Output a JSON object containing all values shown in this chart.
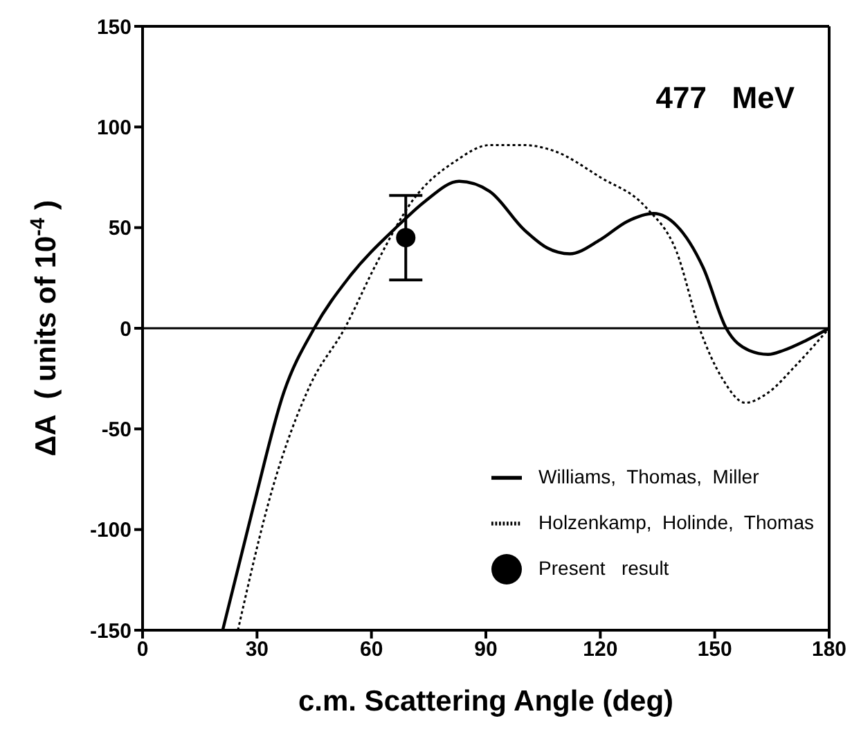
{
  "chart_data": {
    "type": "line",
    "xlabel": "c.m. Scattering Angle (deg)",
    "ylabel": "ΔA  ( units of 10$^{-4}$ )",
    "annotations": [
      "477   MeV"
    ],
    "xlim": [
      0,
      180
    ],
    "xticks": [
      0,
      30,
      60,
      90,
      120,
      150,
      180
    ],
    "ylim": [
      -150,
      150
    ],
    "yticks": [
      -150,
      -100,
      -50,
      0,
      50,
      100,
      150
    ],
    "grid": false,
    "legend": "bottom right",
    "marker": "none",
    "ref_lines": [
      {
        "axis": "y",
        "value": 0,
        "color": "#000000"
      }
    ],
    "series": [
      {
        "name": "Williams,  Thomas,  Miller",
        "color": "#000000",
        "line_style": "solid",
        "x": [
          21,
          29,
          37,
          45,
          54,
          67,
          74,
          83,
          91,
          100,
          106,
          112,
          120,
          127,
          134,
          140,
          147,
          153,
          159,
          164,
          168,
          174,
          180
        ],
        "values": [
          -150,
          -89,
          -32,
          0,
          25,
          51,
          63,
          73,
          68,
          49,
          40,
          37,
          44,
          53,
          57,
          51,
          30,
          0,
          -11,
          -13,
          -11,
          -6,
          0
        ]
      },
      {
        "name": "Holzenkamp,  Holinde,  Thomas",
        "color": "#000000",
        "line_style": "dotted",
        "x": [
          25,
          34,
          44,
          53,
          61,
          71,
          82,
          91,
          100,
          108,
          120,
          132,
          140,
          146,
          152,
          158,
          164,
          171,
          180
        ],
        "values": [
          -150,
          -80,
          -28,
          0,
          31,
          64,
          83,
          91,
          91,
          88,
          75,
          60,
          38,
          0,
          -25,
          -37,
          -32,
          -19,
          0
        ]
      },
      {
        "name": "Present   result",
        "type": "scatter",
        "color": "#000000",
        "marker": "circle",
        "x": [
          69
        ],
        "values": [
          45
        ],
        "errors": [
          21
        ]
      }
    ]
  }
}
